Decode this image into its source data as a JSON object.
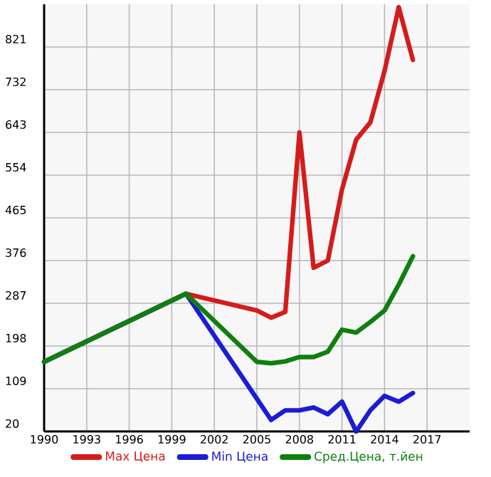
{
  "chart_data": {
    "type": "line",
    "x": [
      1990,
      2000,
      2005,
      2006,
      2007,
      2008,
      2009,
      2010,
      2011,
      2012,
      2013,
      2014,
      2015,
      2016
    ],
    "series": [
      {
        "name": "Max Цена",
        "color": "#d41c1c",
        "values": [
          165,
          307,
          272,
          257,
          269,
          643,
          361,
          376,
          524,
          628,
          664,
          771,
          904,
          794
        ]
      },
      {
        "name": "Min Цена",
        "color": "#1c1cd4",
        "values": [
          165,
          307,
          88,
          44,
          64,
          64,
          70,
          56,
          82,
          20,
          64,
          94,
          82,
          100
        ]
      },
      {
        "name": "Сред.Цена, т.йен",
        "color": "#0f7f0f",
        "values": [
          165,
          307,
          165,
          162,
          166,
          175,
          175,
          186,
          232,
          226,
          248,
          272,
          326,
          385
        ]
      }
    ],
    "xlim": [
      1990,
      2020
    ],
    "xticks": [
      1990,
      1993,
      1996,
      1999,
      2002,
      2005,
      2008,
      2011,
      2014,
      2017
    ],
    "ylim": [
      20,
      910
    ],
    "yticks": [
      20,
      109,
      198,
      287,
      376,
      465,
      554,
      643,
      732,
      821
    ],
    "grid": true,
    "legend": "bottom",
    "marker": "none",
    "line_style": "solid"
  }
}
